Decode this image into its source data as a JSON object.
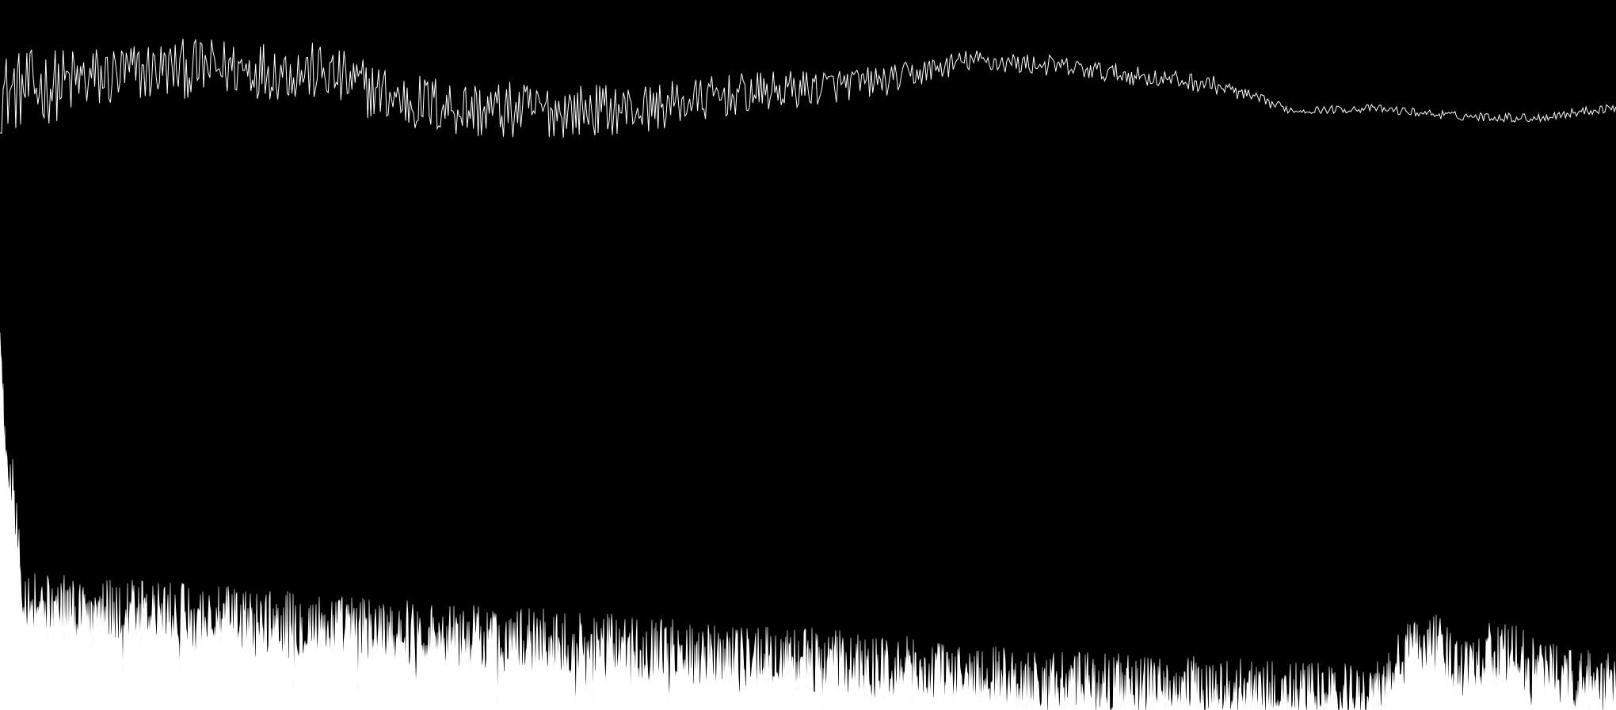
{
  "colors": {
    "background": "#000000",
    "waveform_stroke": "#ffffff",
    "spectrum_fill": "#ffffff"
  },
  "chart_data": [
    {
      "type": "line",
      "series": [
        {
          "envelope_x": [
            0,
            0.05,
            0.1,
            0.15,
            0.2,
            0.25,
            0.3,
            0.35,
            0.4,
            0.45,
            0.5,
            0.55,
            0.6,
            0.65,
            0.7,
            0.75,
            0.8,
            0.85,
            0.9,
            0.95,
            1.0
          ],
          "envelope_y": [
            0.18,
            0.34,
            0.5,
            0.52,
            0.45,
            0.08,
            -0.05,
            -0.05,
            -0.02,
            0.15,
            0.25,
            0.35,
            0.62,
            0.55,
            0.42,
            0.3,
            -0.05,
            -0.02,
            -0.12,
            -0.15,
            0.0
          ],
          "noise_amplitude_x": [
            0,
            0.1,
            0.3,
            0.5,
            0.6,
            0.75,
            0.8,
            0.9,
            1.0
          ],
          "noise_amplitude": [
            0.55,
            0.4,
            0.4,
            0.25,
            0.15,
            0.12,
            0.05,
            0.06,
            0.06
          ]
        }
      ],
      "ylim": [
        -1,
        1
      ],
      "grid": false
    },
    {
      "type": "area",
      "series": [
        {
          "profile_x": [
            0,
            0.002,
            0.005,
            0.01,
            0.015,
            0.03,
            0.1,
            0.2,
            0.3,
            0.4,
            0.5,
            0.55,
            0.6,
            0.65,
            0.7,
            0.75,
            0.8,
            0.85,
            0.88,
            0.9,
            0.93,
            0.95,
            0.97,
            1.0
          ],
          "profile_y": [
            1.0,
            0.78,
            0.65,
            0.52,
            0.3,
            0.27,
            0.25,
            0.22,
            0.19,
            0.16,
            0.13,
            0.11,
            0.09,
            0.07,
            0.06,
            0.05,
            0.04,
            0.03,
            0.2,
            0.12,
            0.15,
            0.11,
            0.08,
            0.06
          ],
          "spike_amplitude": 0.09
        }
      ],
      "ylim": [
        0,
        1
      ],
      "grid": false
    }
  ]
}
